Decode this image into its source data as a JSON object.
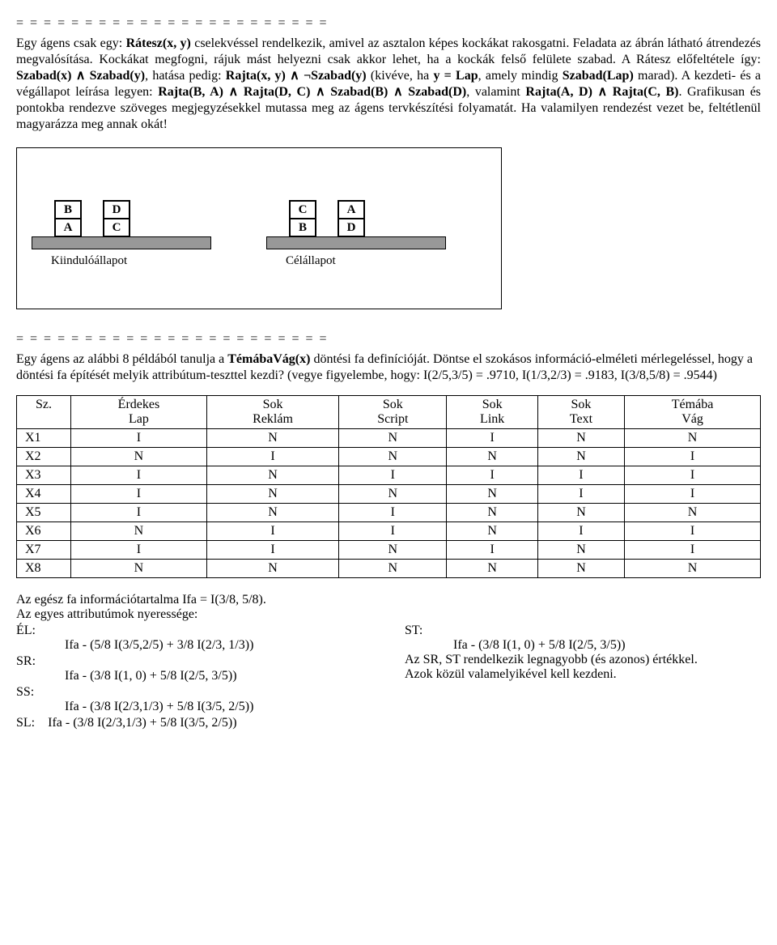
{
  "sep": "= = = = = = = = = = = = = = = = = = = = = = =",
  "p1": {
    "t1": "Egy ágens csak egy: ",
    "b1": "Rátesz(x, y)",
    "t2": " cselekvéssel rendelkezik, amivel az asztalon képes kockákat rakosgatni. Feladata az ábrán látható átrendezés megvalósítása. Kockákat megfogni, rájuk mást helyezni csak akkor lehet, ha a kockák felső felülete szabad. A Rátesz előfeltétele így: ",
    "b2": "Szabad(x) ∧ Szabad(y)",
    "t3": ", hatása pedig: ",
    "b3": "Rajta(x, y) ∧ ¬Szabad(y)",
    "t4": " (kivéve, ha ",
    "b4": "y = Lap",
    "t5": ", amely mindig ",
    "b5": "Szabad(Lap)",
    "t6": " marad). A kezdeti- és a végállapot leírása legyen: ",
    "b6": "Rajta(B, A) ∧ Rajta(D, C) ∧ Szabad(B) ∧ Szabad(D)",
    "t7": ", valamint ",
    "b7": "Rajta(A, D) ∧ Rajta(C, B)",
    "t8": ". Grafikusan és pontokba rendezve szöveges megjegyzésekkel mutassa meg az ágens tervkészítési folyamatát. Ha valamilyen rendezést vezet be, feltétlenül magyarázza meg annak okát!"
  },
  "diagram": {
    "start": {
      "label": "Kiindulóállapot",
      "col1_top": "B",
      "col1_bot": "A",
      "col2_top": "D",
      "col2_bot": "C"
    },
    "goal": {
      "label": "Célállapot",
      "col1_top": "C",
      "col1_bot": "B",
      "col2_top": "A",
      "col2_bot": "D"
    }
  },
  "p2": {
    "t1": "Egy ágens az alábbi 8 példából tanulja a ",
    "b1": "TémábaVág(x)",
    "t2": " döntési fa definícióját. Döntse el szokásos információ-elméleti mérlegeléssel, hogy a döntési fa építését melyik attribútum-teszttel kezdi? (vegye figyelembe, hogy: I(2/5,3/5) = .9710, I(1/3,2/3) = .9183, I(3/8,5/8) = .9544)"
  },
  "table": {
    "headers": [
      {
        "l1": "Sz.",
        "l2": ""
      },
      {
        "l1": "Érdekes",
        "l2": "Lap"
      },
      {
        "l1": "Sok",
        "l2": "Reklám"
      },
      {
        "l1": "Sok",
        "l2": "Script"
      },
      {
        "l1": "Sok",
        "l2": "Link"
      },
      {
        "l1": "Sok",
        "l2": "Text"
      },
      {
        "l1": "Témába",
        "l2": "Vág"
      }
    ],
    "rows": [
      [
        "X1",
        "I",
        "N",
        "N",
        "I",
        "N",
        "N"
      ],
      [
        "X2",
        "N",
        "I",
        "N",
        "N",
        "N",
        "I"
      ],
      [
        "X3",
        "I",
        "N",
        "I",
        "I",
        "I",
        "I"
      ],
      [
        "X4",
        "I",
        "N",
        "N",
        "N",
        "I",
        "I"
      ],
      [
        "X5",
        "I",
        "N",
        "I",
        "N",
        "N",
        "N"
      ],
      [
        "X6",
        "N",
        "I",
        "I",
        "N",
        "I",
        "I"
      ],
      [
        "X7",
        "I",
        "I",
        "N",
        "I",
        "N",
        "I"
      ],
      [
        "X8",
        "N",
        "N",
        "N",
        "N",
        "N",
        "N"
      ]
    ]
  },
  "gain": {
    "intro1": "Az egész fa információtartalma Ifa = I(3/8, 5/8).",
    "intro2": "Az egyes attributúmok nyeressége:",
    "left": {
      "l1": "ÉL:",
      "v1": "Ifa - (5/8 I(3/5,2/5) + 3/8 I(2/3, 1/3))",
      "l2": "SR:",
      "v2": "Ifa - (3/8 I(1, 0) + 5/8 I(2/5, 3/5))",
      "l3": "SS:",
      "v3": "Ifa - (3/8 I(2/3,1/3) + 5/8 I(3/5, 2/5))",
      "l4": "SL:",
      "v4": "Ifa - (3/8 I(2/3,1/3) + 5/8 I(3/5, 2/5))"
    },
    "right": {
      "l1": "ST:",
      "v1": "Ifa - (3/8 I(1, 0) + 5/8 I(2/5, 3/5))",
      "t1": "Az SR, ST rendelkezik legnagyobb (és azonos) értékkel.",
      "t2": "Azok közül valamelyikével kell kezdeni."
    }
  }
}
